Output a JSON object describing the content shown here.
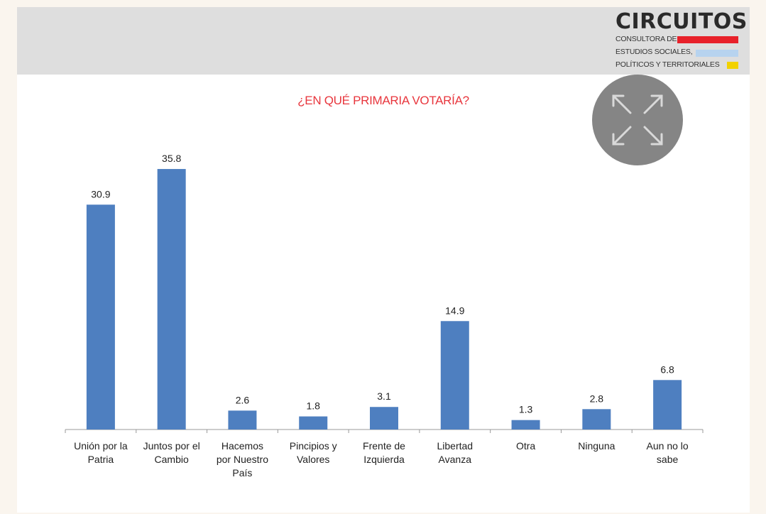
{
  "logo": {
    "name": "CIRCUITOS",
    "lines": [
      "CONSULTORA DE",
      "ESTUDIOS SOCIALES,",
      "POLÍTICOS Y TERRITORIALES"
    ],
    "colors": [
      "#e8212a",
      "#b7d3ef",
      "#f2d200"
    ]
  },
  "expand_button": {
    "icon": "expand-arrows-icon"
  },
  "chart_data": {
    "type": "bar",
    "title": "¿EN QUÉ PRIMARIA VOTARÍA?",
    "categories": [
      [
        "Unión por la",
        "Patria"
      ],
      [
        "Juntos por el",
        "Cambio"
      ],
      [
        "Hacemos",
        "por Nuestro",
        "País"
      ],
      [
        "Pincipios y",
        "Valores"
      ],
      [
        "Frente de",
        "Izquierda"
      ],
      [
        "Libertad",
        "Avanza"
      ],
      [
        "Otra"
      ],
      [
        "Ninguna"
      ],
      [
        "Aun no lo",
        "sabe"
      ]
    ],
    "values": [
      30.9,
      35.8,
      2.6,
      1.8,
      3.1,
      14.9,
      1.3,
      2.8,
      6.8
    ],
    "value_labels": [
      "30.9",
      "35.8",
      "2.6",
      "1.8",
      "3.1",
      "14.9",
      "1.3",
      "2.8",
      "6.8"
    ],
    "bar_color": "#4e7fc0",
    "ylim": [
      0,
      40
    ],
    "grid": false,
    "legend": "none"
  }
}
